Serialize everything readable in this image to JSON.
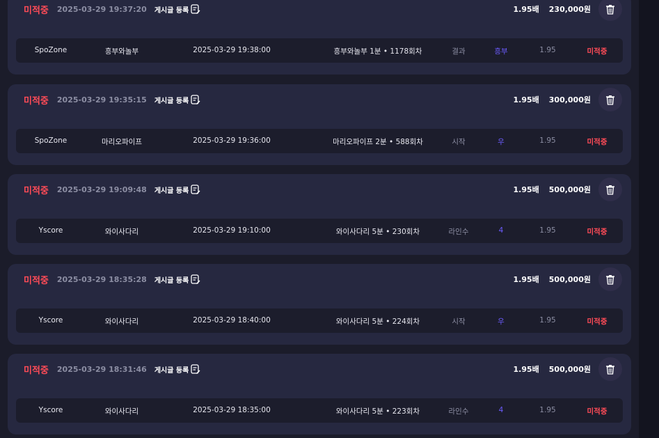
{
  "colors": {
    "miss": "#ff4b57",
    "pick": "#6c5cff"
  },
  "post_label": "게시글 등록",
  "bets": [
    {
      "status": "미적중",
      "time": "2025-03-29 19:37:20",
      "odds": "1.95배",
      "amount": "230,000원",
      "site": "SpoZone",
      "game": "흥부와놀부",
      "datetime": "2025-03-29 19:38:00",
      "round": "흥부와놀부 1분 • 1178회차",
      "type": "결과",
      "pick": "흥부",
      "pick_odds": "1.95",
      "result": "미적중"
    },
    {
      "status": "미적중",
      "time": "2025-03-29 19:35:15",
      "odds": "1.95배",
      "amount": "300,000원",
      "site": "SpoZone",
      "game": "마리오파이프",
      "datetime": "2025-03-29 19:36:00",
      "round": "마리오파이프 2분 • 588회차",
      "type": "시작",
      "pick": "우",
      "pick_odds": "1.95",
      "result": "미적중"
    },
    {
      "status": "미적중",
      "time": "2025-03-29 19:09:48",
      "odds": "1.95배",
      "amount": "500,000원",
      "site": "Yscore",
      "game": "와이사다리",
      "datetime": "2025-03-29 19:10:00",
      "round": "와이사다리 5분 • 230회차",
      "type": "라인수",
      "pick": "4",
      "pick_odds": "1.95",
      "result": "미적중"
    },
    {
      "status": "미적중",
      "time": "2025-03-29 18:35:28",
      "odds": "1.95배",
      "amount": "500,000원",
      "site": "Yscore",
      "game": "와이사다리",
      "datetime": "2025-03-29 18:40:00",
      "round": "와이사다리 5분 • 224회차",
      "type": "시작",
      "pick": "우",
      "pick_odds": "1.95",
      "result": "미적중"
    },
    {
      "status": "미적중",
      "time": "2025-03-29 18:31:46",
      "odds": "1.95배",
      "amount": "500,000원",
      "site": "Yscore",
      "game": "와이사다리",
      "datetime": "2025-03-29 18:35:00",
      "round": "와이사다리 5분 • 223회차",
      "type": "라인수",
      "pick": "4",
      "pick_odds": "1.95",
      "result": "미적중"
    }
  ]
}
